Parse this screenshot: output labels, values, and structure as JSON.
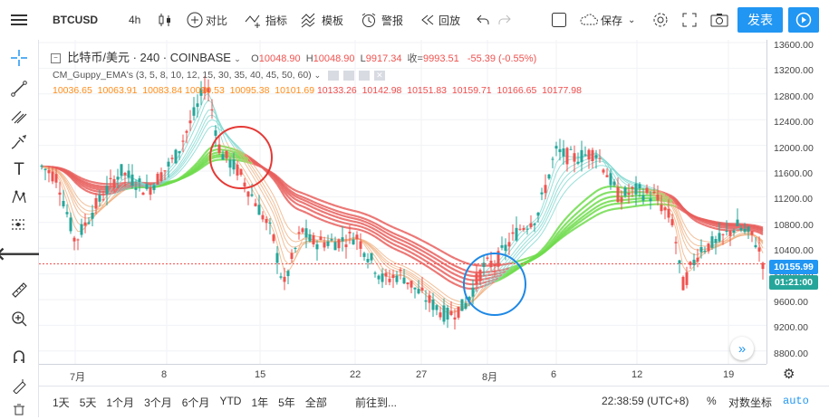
{
  "top_toolbar": {
    "symbol": "BTCUSD",
    "interval": "4h",
    "compare_label": "对比",
    "indicators_label": "指标",
    "templates_label": "模板",
    "alert_label": "警报",
    "replay_label": "回放",
    "save_label": "保存",
    "publish_label": "发表"
  },
  "legend": {
    "title": "比特币/美元 · 240 · COINBASE",
    "open_label": "O",
    "open": "10048.90",
    "high_label": "H",
    "high": "10048.90",
    "low_label": "L",
    "low": "9917.34",
    "close_label": "收=",
    "close": "9993.51",
    "change": "-55.39 (-0.55%)",
    "indicator_name": "CM_Guppy_EMA's (3, 5, 8, 10, 12, 15, 30, 35, 40, 45, 50, 60)",
    "values_orange": "10036.65  10063.91  10083.84",
    "values_hidden": "10090.53  10095.38  10101.69",
    "values_red": "10133.26  10142.98  10151.83  10159.71  10166.65  10177.98"
  },
  "price_axis": {
    "ticks": [
      "13600.00",
      "13200.00",
      "12800.00",
      "12400.00",
      "12000.00",
      "11600.00",
      "11200.00",
      "10800.00",
      "10400.00",
      "10000.00",
      "9600.00",
      "9200.00",
      "8800.00"
    ],
    "current_price": "10155.99",
    "countdown": "01:21:00"
  },
  "time_axis": {
    "ticks": [
      "7月",
      "8",
      "15",
      "22",
      "27",
      "8月",
      "6",
      "12",
      "19"
    ]
  },
  "bottom_bar": {
    "ranges": [
      "1天",
      "5天",
      "1个月",
      "3个月",
      "6个月",
      "YTD",
      "1年",
      "5年",
      "全部"
    ],
    "goto_label": "前往到...",
    "clock": "22:38:59 (UTC+8)",
    "percent_label": "%",
    "log_label": "对数坐标",
    "auto_label": "auto"
  },
  "colors": {
    "accent": "#2196f3",
    "up": "#26a69a",
    "down": "#ef5350",
    "bull_band": "#7be05a",
    "bear_band": "#e8605e",
    "price_line": "#2196f3",
    "countdown_badge": "#26a69a"
  },
  "icons": [
    "menu-icon",
    "crosshair-icon",
    "trendline-icon",
    "fib-icon",
    "brush-icon",
    "text-icon",
    "pattern-icon",
    "measure-icon",
    "arrow-left-icon",
    "ruler-icon",
    "zoom-icon",
    "magnet-icon",
    "lock-icon",
    "trash-icon"
  ]
}
